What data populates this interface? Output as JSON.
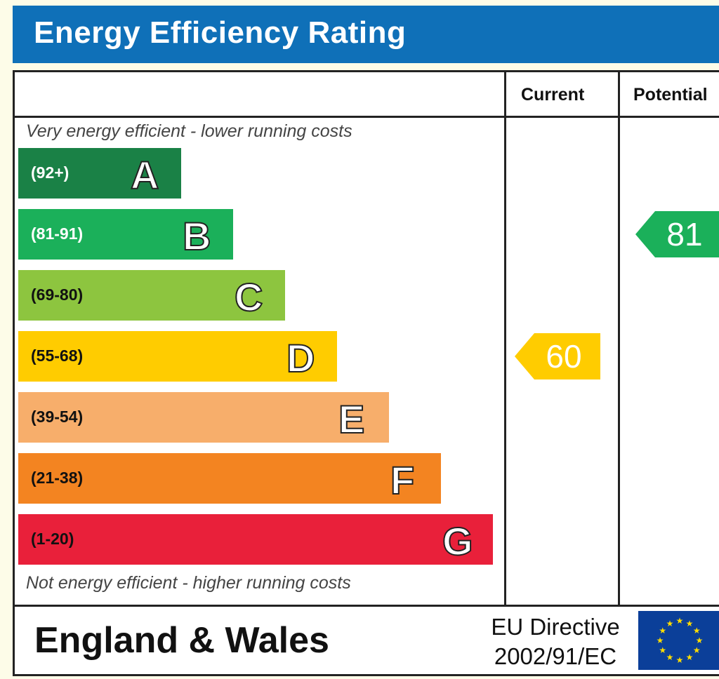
{
  "title": "Energy Efficiency Rating",
  "headers": {
    "current": "Current",
    "potential": "Potential"
  },
  "captions": {
    "top": "Very energy efficient - lower running costs",
    "bottom": "Not energy efficient - higher running costs"
  },
  "footer": {
    "region": "England & Wales",
    "directive_line1": "EU Directive",
    "directive_line2": "2002/91/EC"
  },
  "chart_data": {
    "type": "bar",
    "title": "Energy Efficiency Rating",
    "categories": [
      "A",
      "B",
      "C",
      "D",
      "E",
      "F",
      "G"
    ],
    "bands": [
      {
        "letter": "A",
        "range": "(92+)",
        "color": "#1a8146",
        "text_color": "#ffffff"
      },
      {
        "letter": "B",
        "range": "(81-91)",
        "color": "#1bb05a",
        "text_color": "#ffffff"
      },
      {
        "letter": "C",
        "range": "(69-80)",
        "color": "#8dc53f",
        "text_color": "#111111"
      },
      {
        "letter": "D",
        "range": "(55-68)",
        "color": "#ffcc00",
        "text_color": "#111111"
      },
      {
        "letter": "E",
        "range": "(39-54)",
        "color": "#f7ae6b",
        "text_color": "#111111"
      },
      {
        "letter": "F",
        "range": "(21-38)",
        "color": "#f38421",
        "text_color": "#111111"
      },
      {
        "letter": "G",
        "range": "(1-20)",
        "color": "#e9203a",
        "text_color": "#111111"
      }
    ],
    "ratings": {
      "current": {
        "value": 60,
        "band": "D",
        "color": "#ffcc00"
      },
      "potential": {
        "value": 81,
        "band": "B",
        "color": "#1bb05a"
      }
    }
  }
}
